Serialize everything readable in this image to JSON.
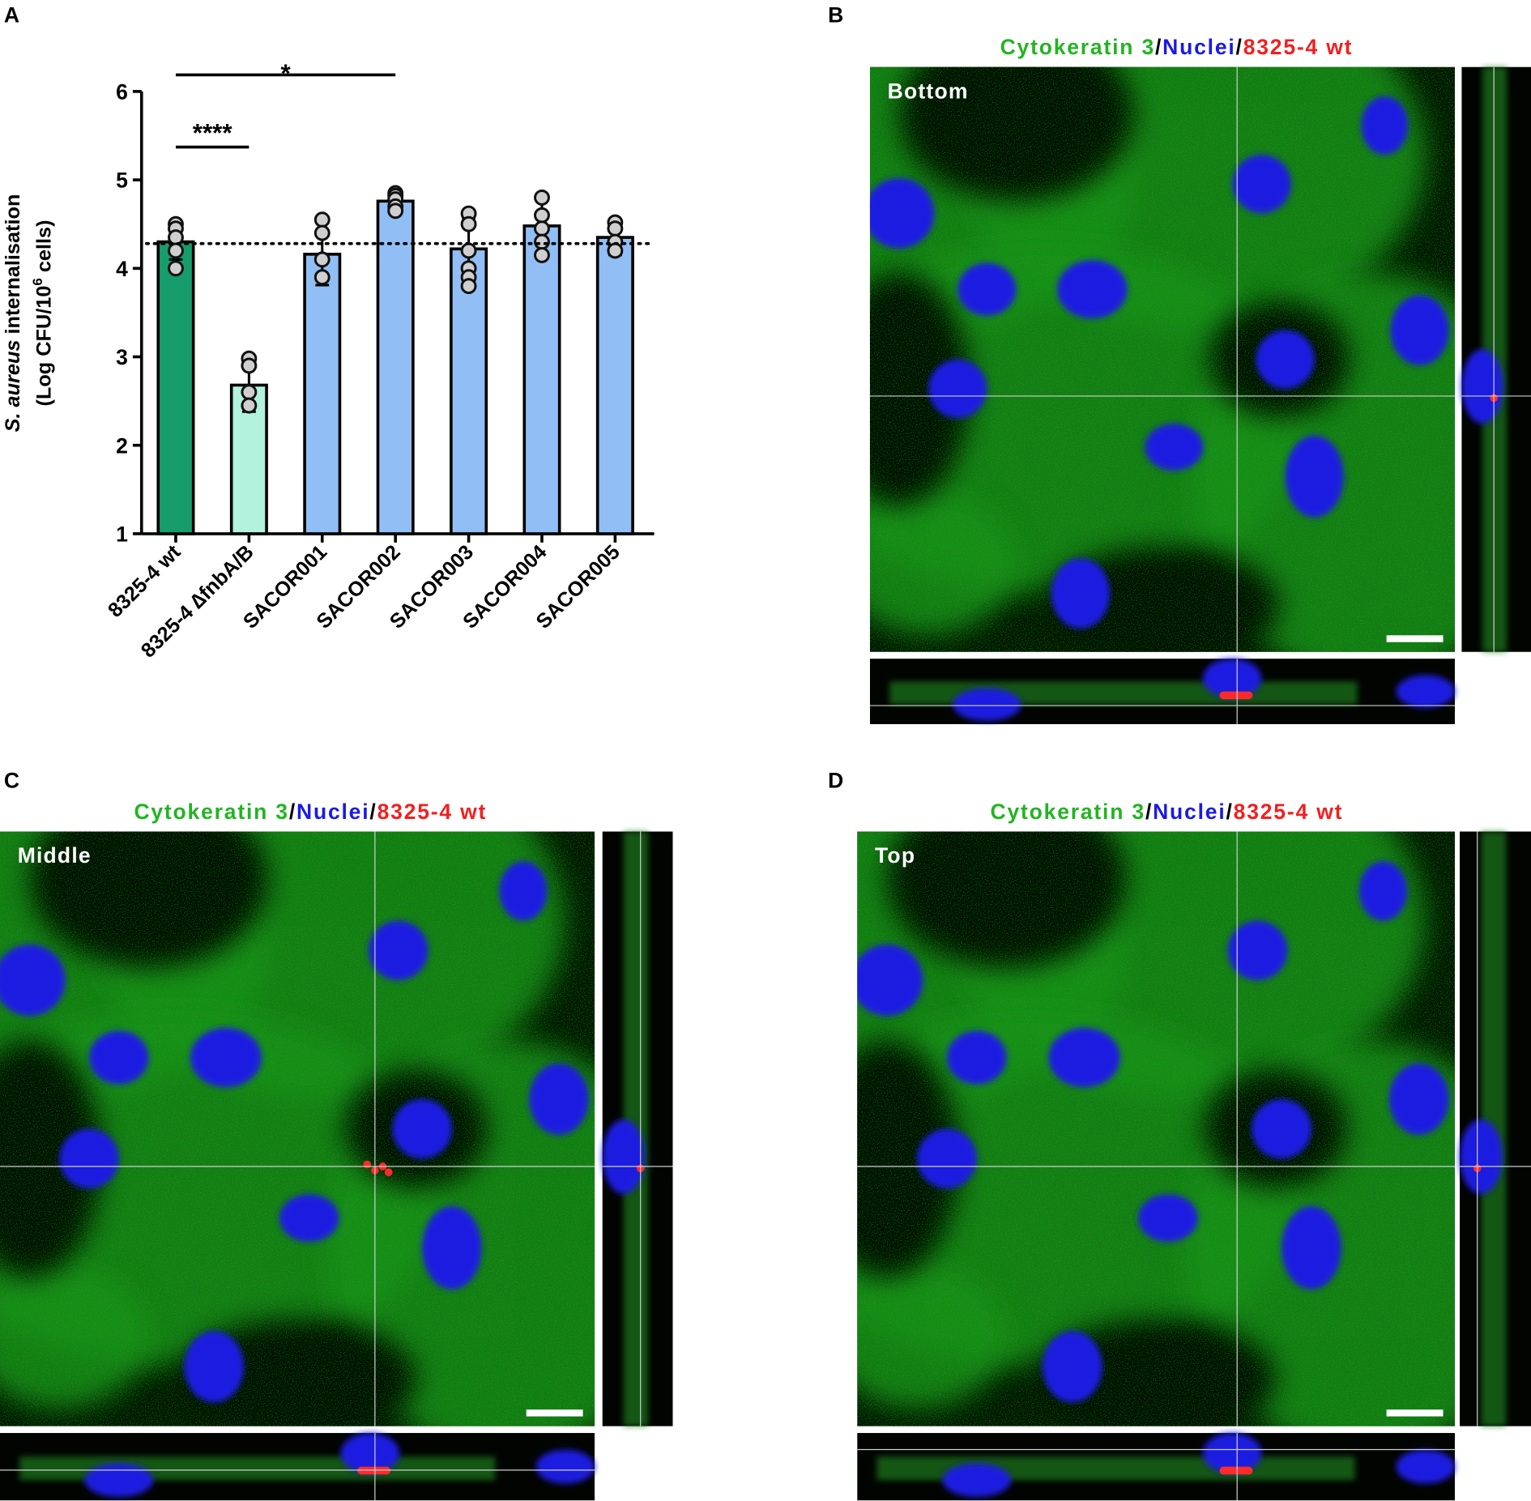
{
  "chart_data": {
    "type": "bar",
    "letter": "A",
    "y_label": {
      "italic": "S. aureus",
      "text": " internalisation"
    },
    "y_unit": {
      "before": "(Log CFU/10",
      "sup": "6",
      "after": " cells)"
    },
    "categories": [
      "8325-4 wt",
      "8325-4 ∆fnbA/B",
      "SACOR001",
      "SACOR002",
      "SACOR003",
      "SACOR004",
      "SACOR005"
    ],
    "values": [
      4.3,
      2.68,
      4.16,
      4.76,
      4.22,
      4.48,
      4.35
    ],
    "errors": [
      0.2,
      0.3,
      0.35,
      0.1,
      0.35,
      0.3,
      0.2
    ],
    "colors": [
      "#169d6b",
      "#b3f2dc",
      "#91bff5",
      "#91bff5",
      "#91bff5",
      "#91bff5",
      "#91bff5"
    ],
    "points": [
      [
        4.5,
        4.45,
        4.35,
        4.2,
        4.0
      ],
      [
        2.98,
        2.9,
        2.6,
        2.45
      ],
      [
        4.55,
        4.4,
        4.1,
        3.9
      ],
      [
        4.85,
        4.82,
        4.78,
        4.7,
        4.65
      ],
      [
        4.62,
        4.5,
        4.2,
        4.0,
        3.9,
        3.8
      ],
      [
        4.8,
        4.6,
        4.45,
        4.3,
        4.15
      ],
      [
        4.52,
        4.45,
        4.3,
        4.2
      ]
    ],
    "reference_line": 4.28,
    "ylim": [
      1,
      6
    ],
    "yticks": [
      1,
      2,
      3,
      4,
      5,
      6
    ],
    "significance": [
      {
        "from": 0,
        "to": 1,
        "label": "****"
      },
      {
        "from": 0,
        "to": 3,
        "label": "*"
      }
    ]
  },
  "panels": [
    {
      "letter": "B",
      "label": "Bottom",
      "title": [
        {
          "text": "Cytokeratin 3",
          "color": "#22b422"
        },
        {
          "text": "/",
          "color": "#000000"
        },
        {
          "text": "Nuclei",
          "color": "#1a1ae6"
        },
        {
          "text": "/",
          "color": "#000000"
        },
        {
          "text": "8325-4 wt",
          "color": "#f02020"
        }
      ]
    },
    {
      "letter": "C",
      "label": "Middle",
      "title": [
        {
          "text": "Cytokeratin 3",
          "color": "#22b422"
        },
        {
          "text": "/",
          "color": "#000000"
        },
        {
          "text": "Nuclei",
          "color": "#1a1ae6"
        },
        {
          "text": "/",
          "color": "#000000"
        },
        {
          "text": "8325-4 wt",
          "color": "#f02020"
        }
      ]
    },
    {
      "letter": "D",
      "label": "Top",
      "title": [
        {
          "text": "Cytokeratin 3",
          "color": "#22b422"
        },
        {
          "text": "/",
          "color": "#000000"
        },
        {
          "text": "Nuclei",
          "color": "#1a1ae6"
        },
        {
          "text": "/",
          "color": "#000000"
        },
        {
          "text": "8325-4 wt",
          "color": "#f02020"
        }
      ]
    }
  ]
}
